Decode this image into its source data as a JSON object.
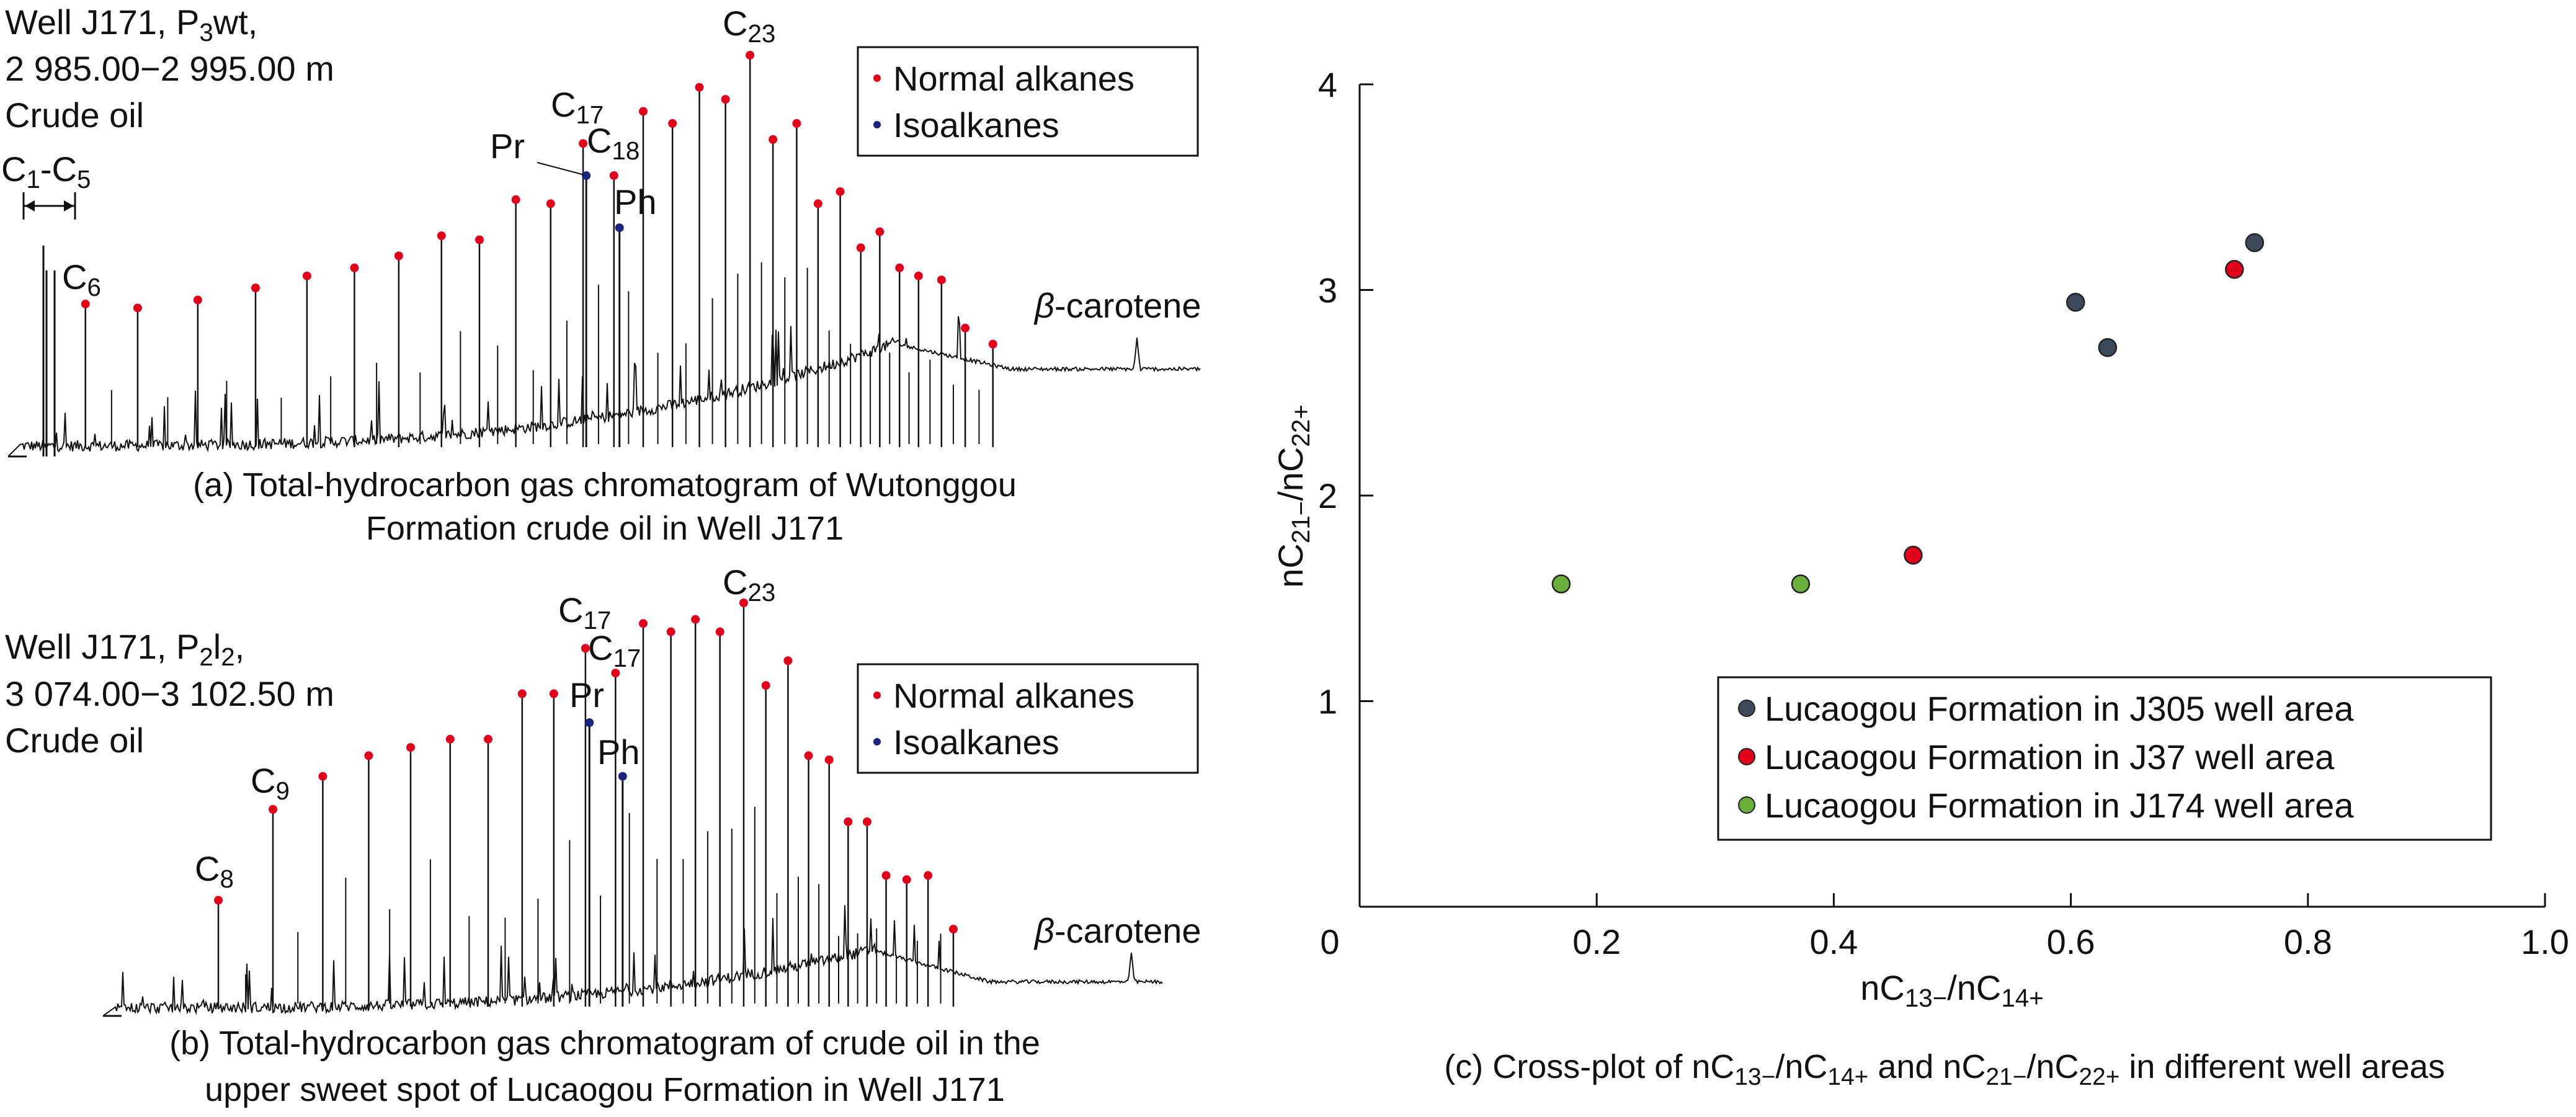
{
  "panel_a": {
    "well": [
      {
        "t": "Well J171, P"
      },
      {
        "t": "3",
        "sub": true
      },
      {
        "t": "wt,"
      }
    ],
    "depth": "2 985.00−2 995.00 m",
    "sample": "Crude oil",
    "legend": {
      "normal": "Normal alkanes",
      "iso": "Isoalkanes"
    },
    "caption1": "(a) Total-hydrocarbon gas chromatogram of Wutonggou",
    "caption2": "Formation crude oil in Well J171",
    "carotene": [
      {
        "t": "β",
        "it": true
      },
      {
        "t": "-carotene"
      }
    ],
    "labels": {
      "c1c5": [
        {
          "t": "C"
        },
        {
          "t": "1",
          "sub": true
        },
        {
          "t": "-C"
        },
        {
          "t": "5",
          "sub": true
        }
      ],
      "c6": [
        {
          "t": "C"
        },
        {
          "t": "6",
          "sub": true
        }
      ],
      "c17": [
        {
          "t": "C"
        },
        {
          "t": "17",
          "sub": true
        }
      ],
      "c18": [
        {
          "t": "C"
        },
        {
          "t": "18",
          "sub": true
        }
      ],
      "pr": [
        {
          "t": "Pr"
        }
      ],
      "ph": [
        {
          "t": "Ph"
        }
      ],
      "c23": [
        {
          "t": "C"
        },
        {
          "t": "23",
          "sub": true
        }
      ]
    },
    "normal_alkane_intensity_pct": [
      38,
      37,
      39,
      42,
      45,
      47,
      50,
      55,
      54,
      64,
      63,
      78,
      70,
      86,
      83,
      92,
      89,
      100,
      79,
      83,
      63,
      66,
      52,
      56,
      47,
      45,
      44,
      32,
      28
    ],
    "isoalkane_intensity_pct": {
      "Pr": 70,
      "Ph": 57
    }
  },
  "panel_b": {
    "well": [
      {
        "t": "Well J171, P"
      },
      {
        "t": "2",
        "sub": true
      },
      {
        "t": "l"
      },
      {
        "t": "2",
        "sub": true
      },
      {
        "t": ","
      }
    ],
    "depth": "3 074.00−3 102.50 m",
    "sample": "Crude oil",
    "legend": {
      "normal": "Normal alkanes",
      "iso": "Isoalkanes"
    },
    "caption1": "(b) Total-hydrocarbon gas chromatogram of crude oil in the",
    "caption2": "upper sweet spot of Lucaogou Formation in Well J171",
    "carotene": [
      {
        "t": "β",
        "it": true
      },
      {
        "t": "-carotene"
      }
    ],
    "labels": {
      "c8": [
        {
          "t": "C"
        },
        {
          "t": "8",
          "sub": true
        }
      ],
      "c9": [
        {
          "t": "C"
        },
        {
          "t": "9",
          "sub": true
        }
      ],
      "c17a": [
        {
          "t": "C"
        },
        {
          "t": "17",
          "sub": true
        }
      ],
      "c17b": [
        {
          "t": "C"
        },
        {
          "t": "17",
          "sub": true
        }
      ],
      "pr": [
        {
          "t": "Pr"
        }
      ],
      "ph": [
        {
          "t": "Ph"
        }
      ],
      "c23": [
        {
          "t": "C"
        },
        {
          "t": "23",
          "sub": true
        }
      ]
    },
    "normal_alkane_intensity_pct": [
      28,
      50,
      58,
      63,
      65,
      67,
      67,
      78,
      78,
      89,
      83,
      95,
      93,
      96,
      93,
      100,
      80,
      86,
      63,
      62,
      47,
      47,
      34,
      33,
      34,
      21
    ],
    "isoalkane_intensity_pct": {
      "Pr": 71,
      "Ph": 58
    }
  },
  "colors": {
    "normal": "#e0001b",
    "iso": "#1a237e",
    "J305": "#3d4a5c",
    "J37": "#e0001b",
    "J174": "#6aae3c"
  },
  "chart_data": [
    {
      "type": "scatter",
      "caption": [
        {
          "t": "(c)  Cross-plot of nC"
        },
        {
          "t": "13−",
          "sub": true
        },
        {
          "t": "/nC"
        },
        {
          "t": "14+",
          "sub": true
        },
        {
          "t": " and nC"
        },
        {
          "t": "21−",
          "sub": true
        },
        {
          "t": "/nC"
        },
        {
          "t": "22+",
          "sub": true
        },
        {
          "t": " in different well areas"
        }
      ],
      "xlabel": [
        {
          "t": "nC"
        },
        {
          "t": "13−",
          "sub": true
        },
        {
          "t": "/nC"
        },
        {
          "t": "14+",
          "sub": true
        }
      ],
      "ylabel": [
        {
          "t": "nC"
        },
        {
          "t": "21−",
          "sub": true
        },
        {
          "t": "/nC"
        },
        {
          "t": "22+",
          "sub": true
        }
      ],
      "xlim": [
        0,
        1.0
      ],
      "ylim": [
        0,
        4
      ],
      "xticks": [
        "0",
        "0.2",
        "0.4",
        "0.6",
        "0.8",
        "1.0"
      ],
      "yticks": [
        "1",
        "2",
        "3",
        "4"
      ],
      "grid": false,
      "legend_position": "bottom-right",
      "series": [
        {
          "name": "Lucaogou Formation in J305 well area",
          "color_key": "J305",
          "points": [
            [
              0.604,
              2.94
            ],
            [
              0.631,
              2.72
            ],
            [
              0.755,
              3.23
            ]
          ]
        },
        {
          "name": "Lucaogou Formation in J37 well area",
          "color_key": "J37",
          "points": [
            [
              0.467,
              1.71
            ],
            [
              0.738,
              3.1
            ]
          ]
        },
        {
          "name": "Lucaogou Formation in J174 well area",
          "color_key": "J174",
          "points": [
            [
              0.17,
              1.57
            ],
            [
              0.372,
              1.57
            ]
          ]
        }
      ]
    }
  ]
}
